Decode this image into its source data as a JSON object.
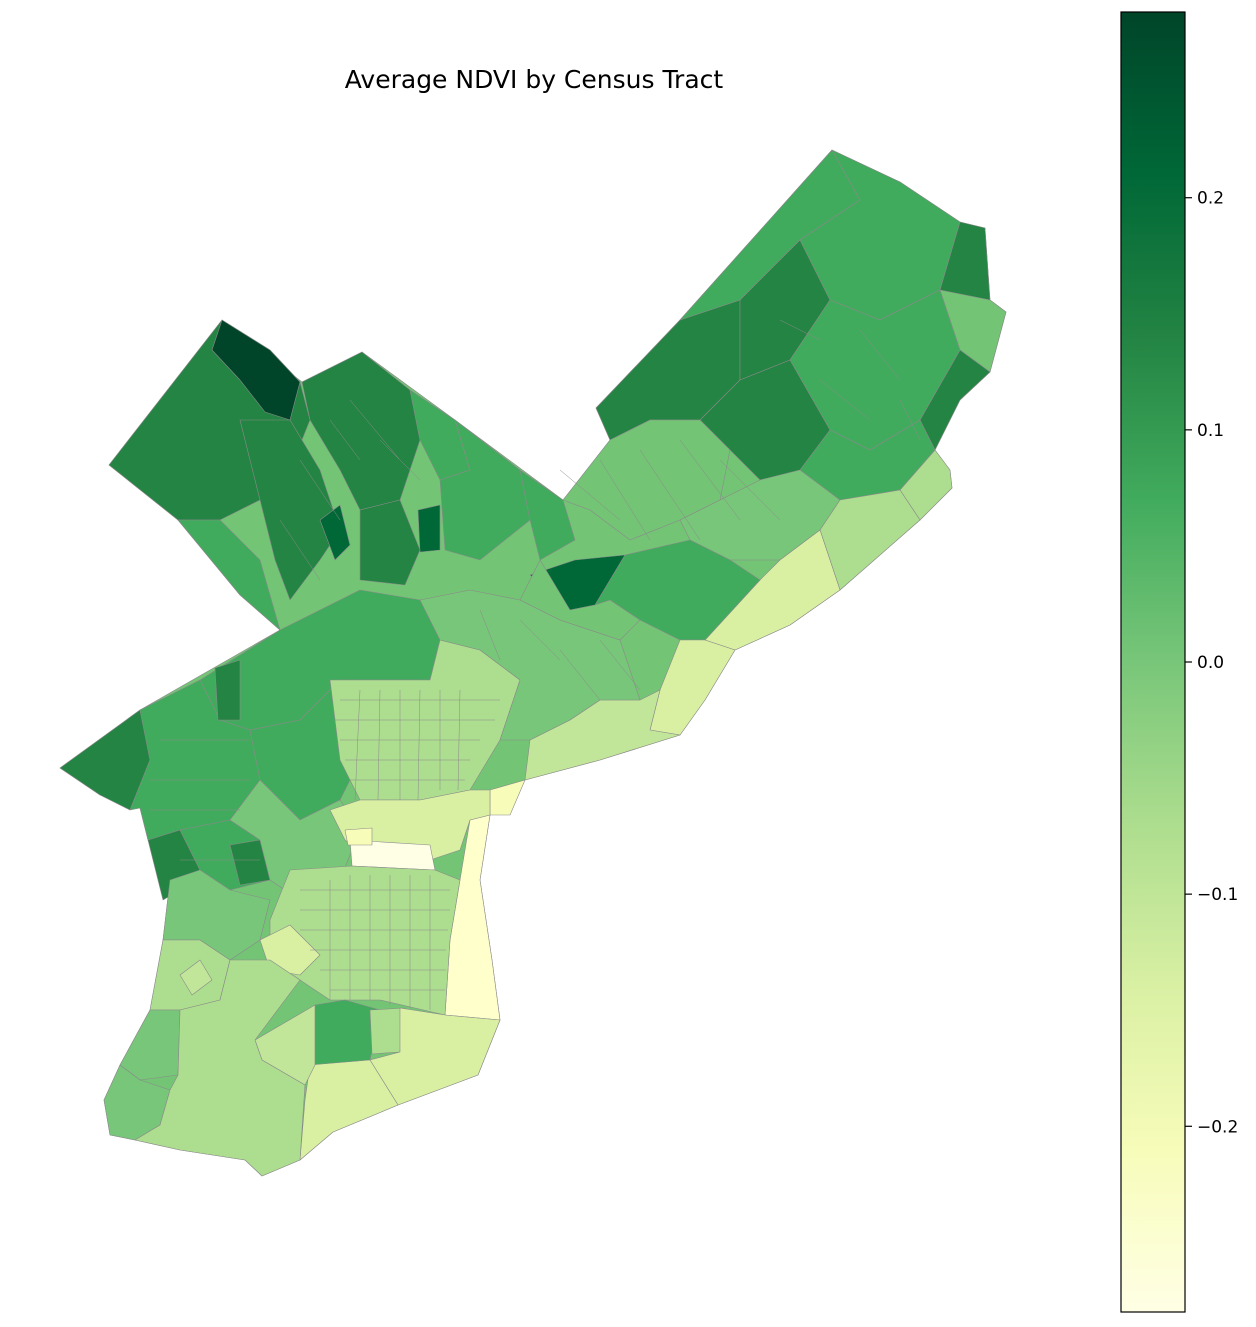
{
  "chart_data": {
    "type": "choropleth",
    "title": "Average NDVI by Census Tract",
    "colormap": "YlGn",
    "colorbar": {
      "vmin": -0.28,
      "vmax": 0.28,
      "ticks": [
        {
          "value": 0.2,
          "label": "0.2"
        },
        {
          "value": 0.1,
          "label": "0.1"
        },
        {
          "value": 0.0,
          "label": "0.0"
        },
        {
          "value": -0.1,
          "label": "−0.1"
        },
        {
          "value": -0.2,
          "label": "−0.2"
        }
      ],
      "placement": "right"
    },
    "colors": {
      "high": "#004529",
      "mid": "#41ab5d",
      "low": "#ffffe5",
      "boundary": "#8a8a8a"
    },
    "axis": "off"
  }
}
